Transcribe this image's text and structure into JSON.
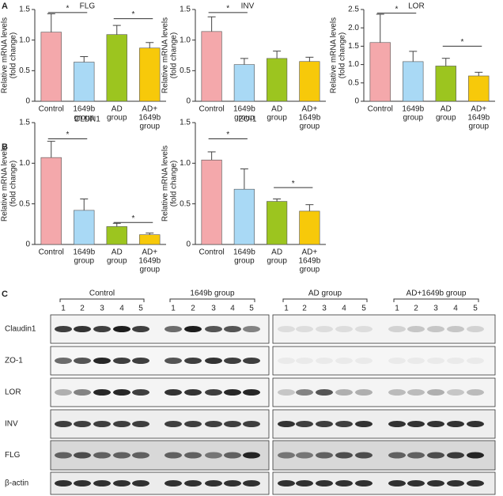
{
  "panels": [
    "A",
    "B",
    "C"
  ],
  "chart_data": [
    {
      "type": "bar",
      "title": "FLG",
      "y_label": [
        "Relative mRNA levels",
        "(fold change)"
      ],
      "categories": [
        [
          "Control"
        ],
        [
          "1649b",
          "group"
        ],
        [
          "AD",
          "group"
        ],
        [
          "AD+",
          "1649b",
          "group"
        ]
      ],
      "colors": [
        "#f4a8ab",
        "#a9d9f5",
        "#9cc51f",
        "#f7c90a"
      ],
      "values": [
        1.13,
        0.64,
        1.09,
        0.87
      ],
      "errors": [
        0.3,
        0.09,
        0.15,
        0.09
      ],
      "ylim": [
        0,
        1.5
      ],
      "yticks": [
        0,
        0.5,
        {
          "value": 1,
          "label": "1.0"
        },
        1.5
      ],
      "significance": [
        {
          "label": "*",
          "between": [
            0,
            1
          ],
          "y": 1.45
        },
        {
          "label": "*",
          "between": [
            2,
            3
          ],
          "y": 1.35
        }
      ]
    },
    {
      "type": "bar",
      "title": "INV",
      "y_label": [
        "Relative mRNA levels",
        "(fold change)"
      ],
      "categories": [
        [
          "Control"
        ],
        [
          "1649b",
          "group"
        ],
        [
          "AD",
          "group"
        ],
        [
          "AD+",
          "1649b",
          "group"
        ]
      ],
      "colors": [
        "#f4a8ab",
        "#a9d9f5",
        "#9cc51f",
        "#f7c90a"
      ],
      "values": [
        1.14,
        0.6,
        0.7,
        0.65
      ],
      "errors": [
        0.24,
        0.1,
        0.12,
        0.07
      ],
      "ylim": [
        0,
        1.5
      ],
      "yticks": [
        0,
        0.5,
        {
          "value": 1,
          "label": "1.0"
        },
        1.5
      ],
      "significance": [
        {
          "label": "*",
          "between": [
            0,
            1
          ],
          "y": 1.45
        }
      ]
    },
    {
      "type": "bar",
      "title": "LOR",
      "y_label": [
        "Relative mRNA levels",
        "(fold change)"
      ],
      "categories": [
        [
          "Control"
        ],
        [
          "1649b",
          "group"
        ],
        [
          "AD",
          "group"
        ],
        [
          "AD+",
          "1649b",
          "group"
        ]
      ],
      "colors": [
        "#f4a8ab",
        "#a9d9f5",
        "#9cc51f",
        "#f7c90a"
      ],
      "values": [
        1.6,
        1.08,
        0.96,
        0.69
      ],
      "errors": [
        0.77,
        0.28,
        0.21,
        0.1
      ],
      "ylim": [
        0,
        2.5
      ],
      "yticks": [
        0,
        0.5,
        {
          "value": 1,
          "label": "1.0"
        },
        1.5,
        {
          "value": 2,
          "label": "2.0"
        },
        2.5
      ],
      "significance": [
        {
          "label": "*",
          "between": [
            0,
            1
          ],
          "y": 2.4
        },
        {
          "label": "*",
          "between": [
            2,
            3
          ],
          "y": 1.5
        }
      ]
    },
    {
      "type": "bar",
      "title": "CLDN1",
      "y_label": [
        "Relative mRNA levels",
        "(fold change)"
      ],
      "categories": [
        [
          "Control"
        ],
        [
          "1649b",
          "group"
        ],
        [
          "AD",
          "group"
        ],
        [
          "AD+",
          "1649b",
          "group"
        ]
      ],
      "colors": [
        "#f4a8ab",
        "#a9d9f5",
        "#9cc51f",
        "#f7c90a"
      ],
      "values": [
        1.07,
        0.42,
        0.22,
        0.12
      ],
      "errors": [
        0.2,
        0.14,
        0.04,
        0.02
      ],
      "ylim": [
        0,
        1.5
      ],
      "yticks": [
        0,
        0.5,
        {
          "value": 1,
          "label": "1.0"
        },
        1.5
      ],
      "significance": [
        {
          "label": "*",
          "between": [
            0,
            1
          ],
          "y": 1.3
        },
        {
          "label": "*",
          "between": [
            2,
            3
          ],
          "y": 0.27
        }
      ]
    },
    {
      "type": "bar",
      "title": "ZO-1",
      "y_label": [
        "Relative mRNA levels",
        "(fold change)"
      ],
      "categories": [
        [
          "Control"
        ],
        [
          "1649b",
          "group"
        ],
        [
          "AD",
          "group"
        ],
        [
          "AD+",
          "1649b",
          "group"
        ]
      ],
      "colors": [
        "#f4a8ab",
        "#a9d9f5",
        "#9cc51f",
        "#f7c90a"
      ],
      "values": [
        1.04,
        0.68,
        0.53,
        0.41
      ],
      "errors": [
        0.1,
        0.25,
        0.03,
        0.08
      ],
      "ylim": [
        0,
        1.5
      ],
      "yticks": [
        0,
        0.5,
        {
          "value": 1,
          "label": "1.0"
        },
        1.5
      ],
      "significance": [
        {
          "label": "*",
          "between": [
            0,
            1
          ],
          "y": 1.3
        },
        {
          "label": "*",
          "between": [
            2,
            3
          ],
          "y": 0.7
        }
      ]
    }
  ],
  "blot": {
    "groups": [
      "Control",
      "1649b group",
      "AD group",
      "AD+1649b group"
    ],
    "lanes": [
      "1",
      "2",
      "3",
      "4",
      "5"
    ],
    "rows": [
      "Claudin1",
      "ZO-1",
      "LOR",
      "INV",
      "FLG",
      "β-actin"
    ]
  }
}
